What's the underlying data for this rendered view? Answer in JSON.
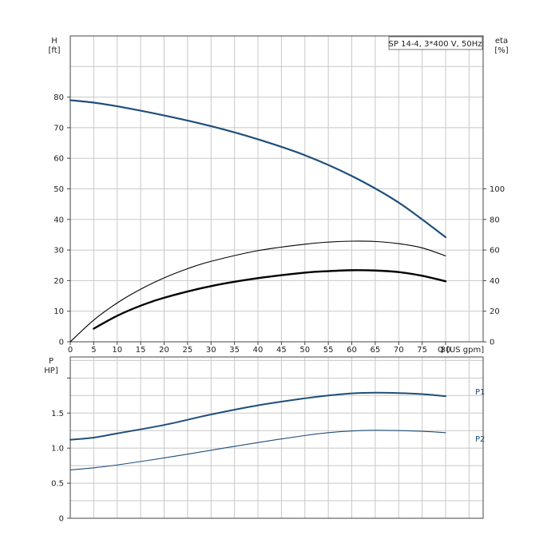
{
  "chart_data": [
    {
      "type": "line",
      "title": "SP 14-4, 3*400 V, 50Hz",
      "xlabel": "Q [US gpm]",
      "ylabel": "H",
      "ylabel_unit": "[ft]",
      "y2label": "eta",
      "y2label_unit": "[%]",
      "xlim": [
        0,
        88
      ],
      "ylim": [
        0,
        100
      ],
      "y2lim": [
        0,
        200
      ],
      "x_ticks": [
        0,
        5,
        10,
        15,
        20,
        25,
        30,
        35,
        40,
        45,
        50,
        55,
        60,
        65,
        70,
        75,
        80
      ],
      "y_ticks": [
        0,
        10,
        20,
        30,
        40,
        50,
        60,
        70,
        80
      ],
      "y2_ticks": [
        0,
        20,
        40,
        60,
        80,
        100
      ],
      "grid": true,
      "series": [
        {
          "axis": "left",
          "color": "#1f4e79",
          "width": 2.2,
          "x": [
            0,
            5,
            10,
            20,
            30,
            40,
            50,
            60,
            70,
            80
          ],
          "y": [
            79,
            78.2,
            77,
            74,
            70.5,
            66.2,
            61,
            54.2,
            45.5,
            34.2
          ]
        },
        {
          "axis": "right",
          "color": "#000000",
          "width": 1.1,
          "x": [
            0,
            5,
            10,
            15,
            20,
            25,
            30,
            40,
            50,
            55,
            60,
            65,
            70,
            75,
            80
          ],
          "y": [
            0,
            14.2,
            25.4,
            34.4,
            41.8,
            47.8,
            52.6,
            59.6,
            63.8,
            65.2,
            65.8,
            65.6,
            64.2,
            61.4,
            56.2
          ]
        },
        {
          "axis": "right",
          "color": "#000000",
          "width": 2.4,
          "x": [
            5,
            10,
            15,
            20,
            30,
            40,
            50,
            55,
            60,
            65,
            70,
            75,
            80
          ],
          "y": [
            8.6,
            17,
            23.6,
            28.8,
            36.4,
            41.6,
            45.2,
            46.2,
            46.8,
            46.6,
            45.6,
            43.2,
            39.6
          ]
        }
      ]
    },
    {
      "type": "line",
      "ylabel": "P",
      "ylabel_unit": "HP]",
      "xlim": [
        0,
        88
      ],
      "ylim": [
        0,
        2.3
      ],
      "y_ticks": [
        0,
        0.5,
        1.0,
        1.5
      ],
      "y_tick_labels": [
        "0",
        "0.5",
        "1.0",
        "1.5"
      ],
      "grid": true,
      "series": [
        {
          "name": "P1",
          "color": "#1f4e79",
          "width": 2.0,
          "x": [
            0,
            5,
            10,
            20,
            30,
            40,
            50,
            55,
            60,
            65,
            70,
            75,
            80
          ],
          "y": [
            1.12,
            1.15,
            1.21,
            1.33,
            1.48,
            1.61,
            1.71,
            1.75,
            1.78,
            1.79,
            1.785,
            1.77,
            1.74
          ]
        },
        {
          "name": "P2",
          "color": "#1f4e79",
          "width": 1.1,
          "x": [
            0,
            5,
            10,
            20,
            30,
            40,
            50,
            55,
            60,
            65,
            70,
            75,
            80
          ],
          "y": [
            0.69,
            0.72,
            0.76,
            0.86,
            0.97,
            1.08,
            1.18,
            1.22,
            1.245,
            1.255,
            1.25,
            1.24,
            1.22
          ]
        }
      ]
    }
  ]
}
